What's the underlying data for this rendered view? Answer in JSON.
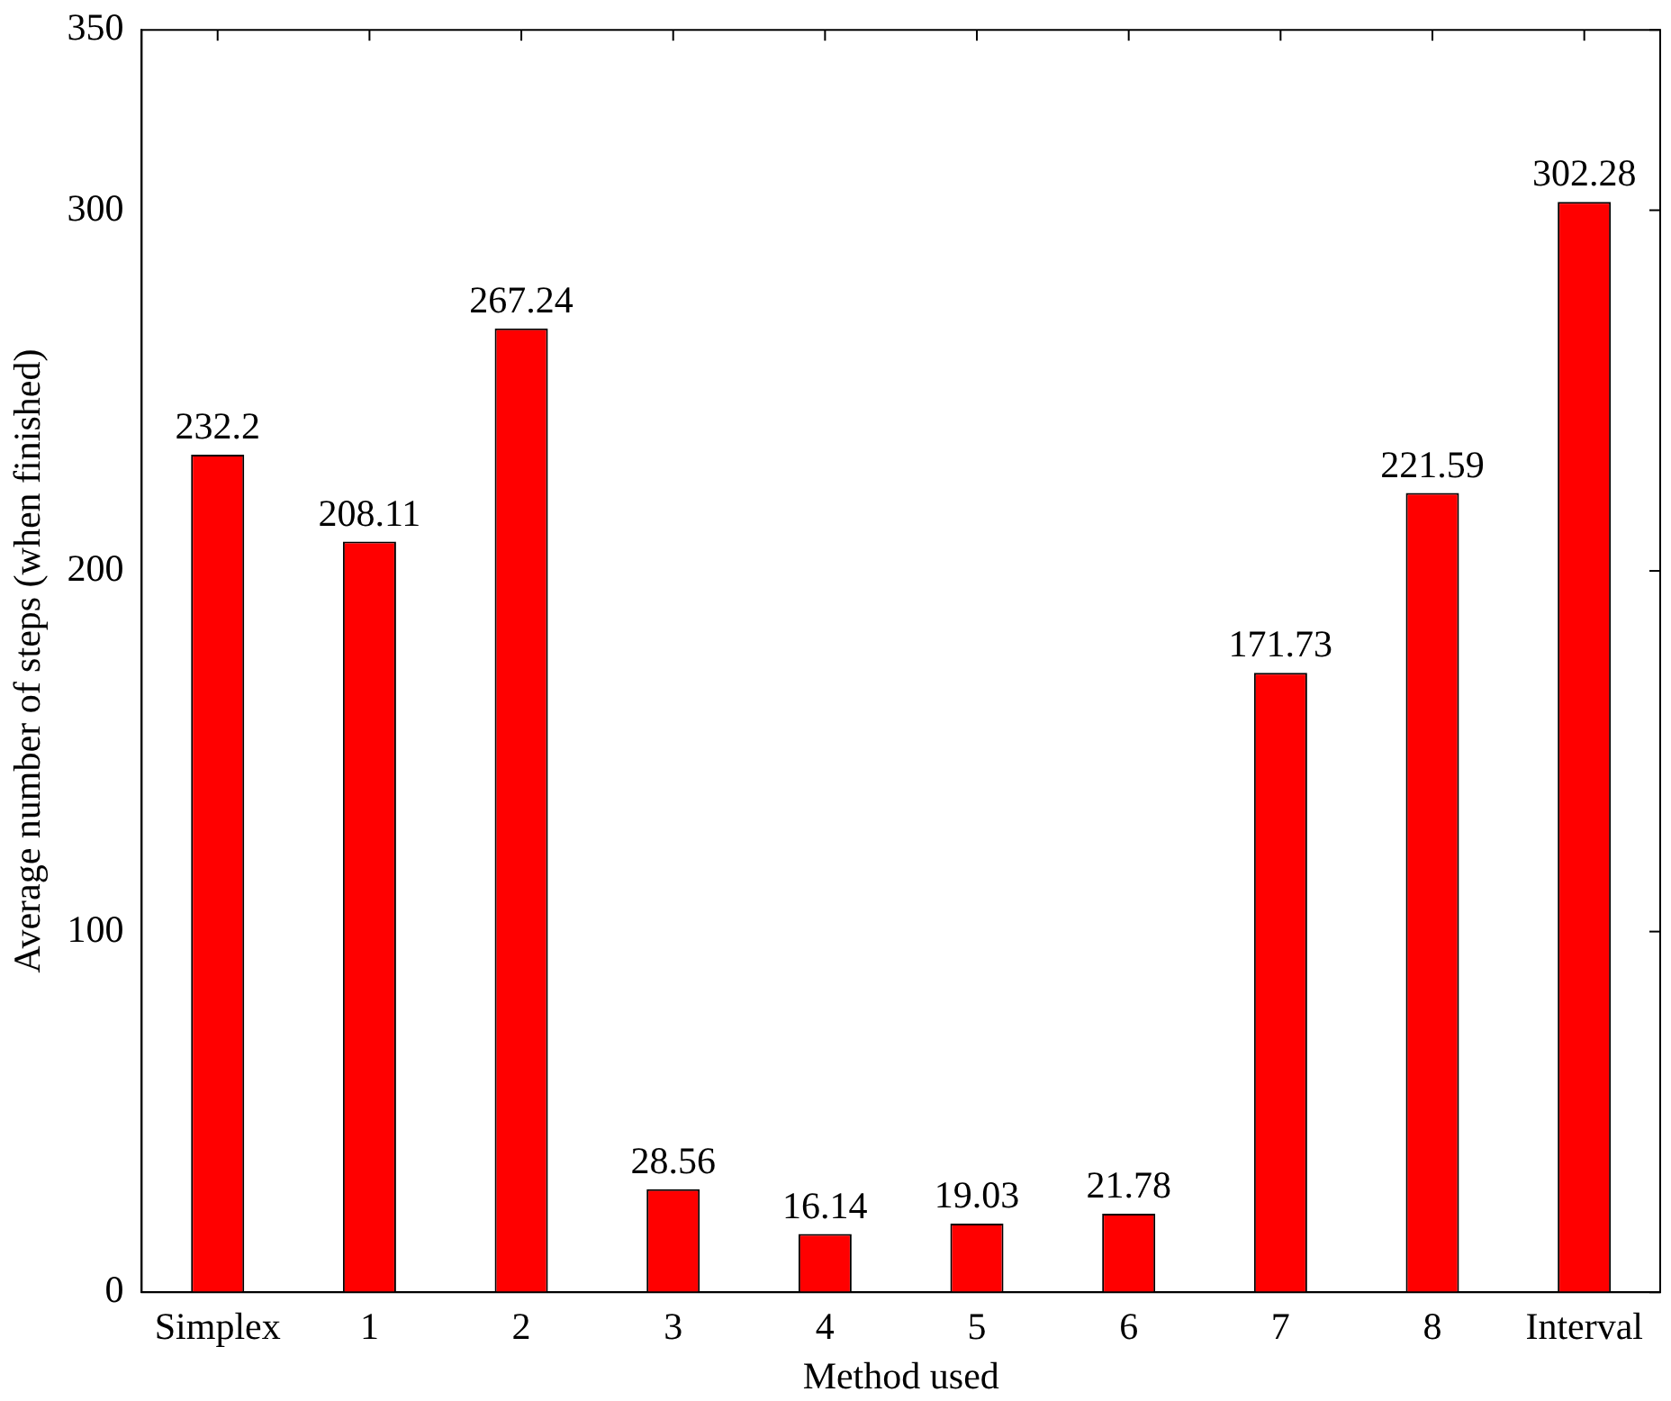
{
  "chart_data": {
    "type": "bar",
    "xlabel": "Method used",
    "ylabel": "Average number of steps (when finished)",
    "categories": [
      "Simplex",
      "1",
      "2",
      "3",
      "4",
      "5",
      "6",
      "7",
      "8",
      "Interval"
    ],
    "values": [
      232.2,
      208.11,
      267.24,
      28.56,
      16.14,
      19.03,
      21.78,
      171.73,
      221.59,
      302.28
    ],
    "color": "#ff0000",
    "ylim": [
      0,
      350
    ],
    "yticks": [
      0,
      100,
      200,
      300,
      350
    ],
    "grid": false,
    "legend": false,
    "data_labels": true
  }
}
